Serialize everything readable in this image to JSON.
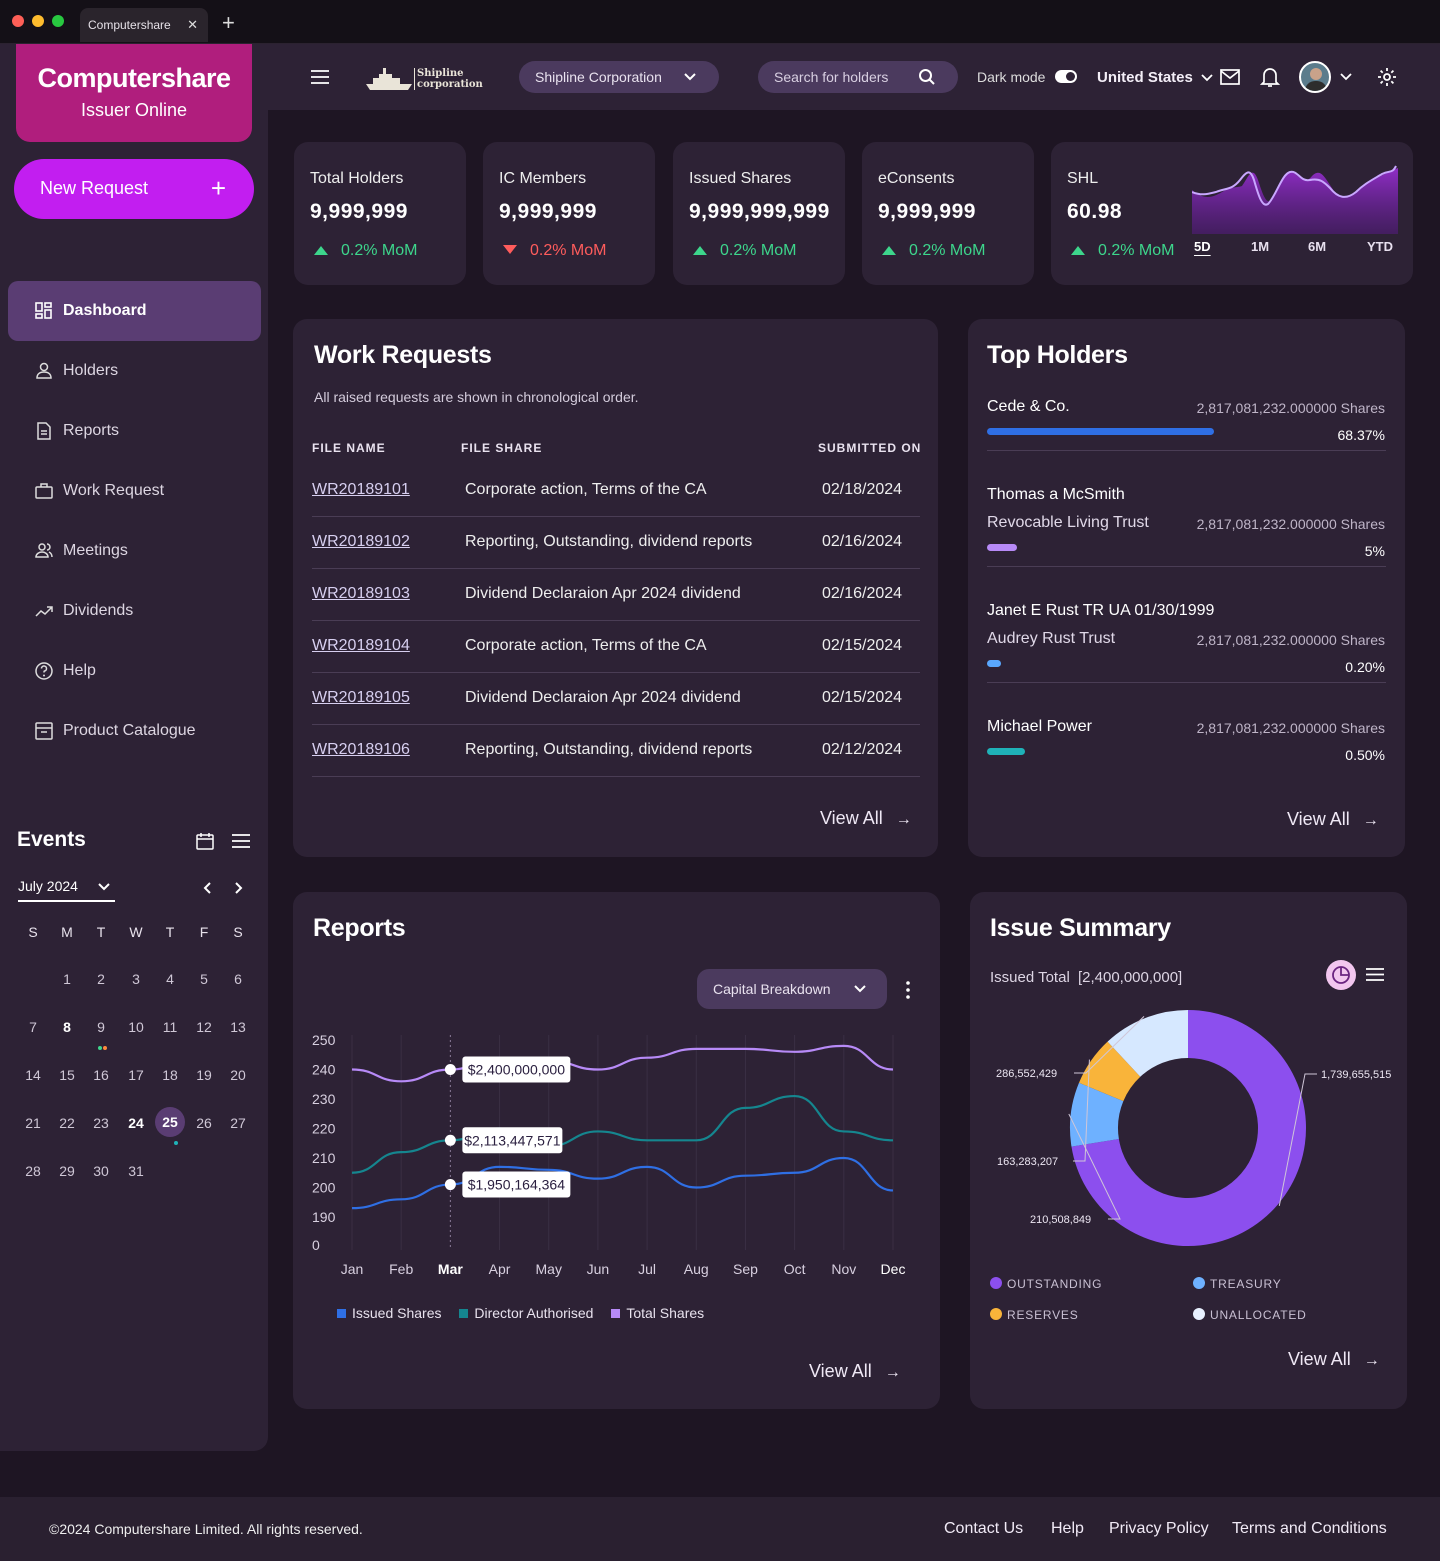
{
  "browser": {
    "tab_title": "Computershare"
  },
  "sidebar": {
    "brand": "Computershare",
    "brand_sub": "Issuer Online",
    "new_request": "New Request",
    "items": [
      {
        "label": "Dashboard",
        "icon": "dashboard-icon"
      },
      {
        "label": "Holders",
        "icon": "user-icon"
      },
      {
        "label": "Reports",
        "icon": "document-icon"
      },
      {
        "label": "Work Request",
        "icon": "briefcase-icon"
      },
      {
        "label": "Meetings",
        "icon": "users-icon"
      },
      {
        "label": "Dividends",
        "icon": "trend-icon"
      },
      {
        "label": "Help",
        "icon": "help-icon"
      },
      {
        "label": "Product Catalogue",
        "icon": "catalogue-icon"
      }
    ]
  },
  "events": {
    "title": "Events",
    "month": "July 2024",
    "weekdays": [
      "S",
      "M",
      "T",
      "W",
      "T",
      "F",
      "S"
    ],
    "days": [
      "1",
      "2",
      "3",
      "4",
      "5",
      "6",
      "7",
      "8",
      "9",
      "10",
      "11",
      "12",
      "13",
      "14",
      "15",
      "16",
      "17",
      "18",
      "19",
      "20",
      "21",
      "22",
      "23",
      "24",
      "25",
      "26",
      "27",
      "28",
      "29",
      "30",
      "31"
    ],
    "selected_day": "25"
  },
  "header": {
    "company_logo_line1": "Shipline",
    "company_logo_line2": "corporation",
    "company_select": "Shipline Corporation",
    "search_placeholder": "Search for holders",
    "dark_mode": "Dark mode",
    "country": "United States"
  },
  "kpis": [
    {
      "title": "Total Holders",
      "value": "9,999,999",
      "change": "0.2% MoM",
      "direction": "up"
    },
    {
      "title": "IC Members",
      "value": "9,999,999",
      "change": "0.2% MoM",
      "direction": "down"
    },
    {
      "title": "Issued Shares",
      "value": "9,999,999,999",
      "change": "0.2% MoM",
      "direction": "up"
    },
    {
      "title": "eConsents",
      "value": "9,999,999",
      "change": "0.2% MoM",
      "direction": "up"
    },
    {
      "title": "SHL",
      "value": "60.98",
      "change": "0.2% MoM",
      "direction": "up"
    }
  ],
  "shl_ranges": [
    "5D",
    "1M",
    "6M",
    "YTD"
  ],
  "work_requests": {
    "title": "Work Requests",
    "subtitle": "All raised requests are shown in chronological order.",
    "columns": [
      "FILE NAME",
      "FILE SHARE",
      "SUBMITTED ON"
    ],
    "rows": [
      [
        "WR20189101",
        "Corporate action, Terms of the CA",
        "02/18/2024"
      ],
      [
        "WR20189102",
        "Reporting, Outstanding, dividend reports",
        "02/16/2024"
      ],
      [
        "WR20189103",
        "Dividend Declaraion Apr 2024 dividend",
        "02/16/2024"
      ],
      [
        "WR20189104",
        "Corporate action, Terms of the CA",
        "02/15/2024"
      ],
      [
        "WR20189105",
        "Dividend Declaraion Apr 2024 dividend",
        "02/15/2024"
      ],
      [
        "WR20189106",
        "Reporting, Outstanding, dividend reports",
        "02/12/2024"
      ]
    ],
    "view_all": "View All"
  },
  "top_holders": {
    "title": "Top Holders",
    "items": [
      {
        "name": "Cede & Co.",
        "name2": "",
        "shares": "2,817,081,232.000000 Shares",
        "pct": "68.37%",
        "share": 0.6837,
        "color": "#2f6fe4"
      },
      {
        "name": "Thomas a McSmith",
        "name2": "Revocable Living Trust",
        "shares": "2,817,081,232.000000 Shares",
        "pct": "5%",
        "share": 0.05,
        "color": "#b78af7"
      },
      {
        "name": "Janet E Rust TR UA 01/30/1999",
        "name2": "Audrey Rust Trust",
        "shares": "2,817,081,232.000000 Shares",
        "pct": "0.20%",
        "share": 0.002,
        "color": "#5aa8ff"
      },
      {
        "name": "Michael Power",
        "name2": "",
        "shares": "2,817,081,232.000000 Shares",
        "pct": "0.50%",
        "share": 0.005,
        "color": "#1fb2b8"
      }
    ],
    "view_all": "View All"
  },
  "reports": {
    "title": "Reports",
    "dropdown": "Capital Breakdown",
    "view_all": "View All",
    "tooltips": [
      "$2,400,000,000",
      "$2,113,447,571",
      "$1,950,164,364"
    ]
  },
  "chart_data": {
    "type": "line",
    "categories": [
      "Jan",
      "Feb",
      "Mar",
      "Apr",
      "May",
      "Jun",
      "Jul",
      "Aug",
      "Sep",
      "Oct",
      "Nov",
      "Dec"
    ],
    "yticks": [
      "250",
      "240",
      "230",
      "220",
      "210",
      "200",
      "190",
      "0"
    ],
    "series": [
      {
        "name": "Issued Shares",
        "color": "#2f6fe4",
        "values": [
          193,
          196,
          201,
          207,
          206,
          203,
          207,
          200,
          204,
          205,
          210,
          199
        ]
      },
      {
        "name": "Director Authorised",
        "color": "#15868f",
        "values": [
          205,
          212,
          216,
          220,
          214,
          219,
          216,
          216,
          227,
          231,
          219,
          216
        ]
      },
      {
        "name": "Total Shares",
        "color": "#b78af7",
        "values": [
          240,
          236,
          240,
          244,
          243,
          240,
          244,
          247,
          247,
          246,
          248,
          240
        ]
      }
    ]
  },
  "issue_summary": {
    "title": "Issue Summary",
    "issued_total": "Issued Total",
    "issued_value": "[2,400,000,000]",
    "view_all": "View All",
    "segments": [
      {
        "label": "OUTSTANDING",
        "value": "1,739,655,515",
        "color": "#8c4fee"
      },
      {
        "label": "TREASURY",
        "value": "210,508,849",
        "color": "#6eb1ff"
      },
      {
        "label": "RESERVES",
        "value": "163,283,207",
        "color": "#f9b43a"
      },
      {
        "label": "UNALLOCATED",
        "value": "286,552,429",
        "color": "#cfe4ff"
      }
    ]
  },
  "footer": {
    "copyright": "©2024 Computershare Limited. All rights reserved.",
    "links": [
      "Contact Us",
      "Help",
      "Privacy Policy",
      "Terms and Conditions"
    ]
  }
}
